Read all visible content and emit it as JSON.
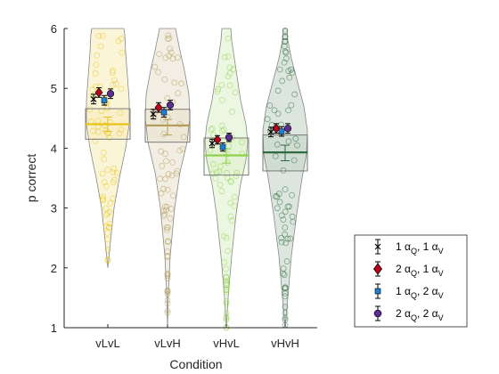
{
  "chart_data": {
    "type": "violin",
    "title": "",
    "xlabel": "Condition",
    "ylabel": "p correct",
    "ylim": [
      1,
      6
    ],
    "yticks": [
      "1",
      "2",
      "3",
      "4",
      "5",
      "6"
    ],
    "categories": [
      "vLvL",
      "vLvH",
      "vHvL",
      "vHvH"
    ],
    "colors": {
      "vLvL": "#e8c31a",
      "vLvH": "#b39d5a",
      "vHvL": "#8fd14f",
      "vHvH": "#2e6b3e"
    },
    "violins": [
      {
        "category": "vLvL",
        "min": 2.0,
        "max": 6.0,
        "q1": 4.15,
        "q3": 4.66,
        "median": 4.4,
        "mean": 4.4,
        "mean_err": 0.12
      },
      {
        "category": "vLvH",
        "min": 1.0,
        "max": 6.0,
        "q1": 4.1,
        "q3": 4.65,
        "median": 4.38,
        "mean": 4.35,
        "mean_err": 0.13
      },
      {
        "category": "vHvL",
        "min": 1.0,
        "max": 6.0,
        "q1": 3.55,
        "q3": 4.17,
        "median": 3.88,
        "mean": 3.87,
        "mean_err": 0.12
      },
      {
        "category": "vHvH",
        "min": 1.0,
        "max": 6.0,
        "q1": 3.62,
        "q3": 4.22,
        "median": 3.93,
        "mean": 3.92,
        "mean_err": 0.13
      }
    ],
    "series": [
      {
        "name": "1 αQ, 1 αV",
        "marker": "x",
        "color": "#000000",
        "values": [
          4.82,
          4.57,
          4.08,
          4.27
        ],
        "err": [
          0.08,
          0.08,
          0.07,
          0.08
        ]
      },
      {
        "name": "2 αQ, 1 αV",
        "marker": "diamond",
        "color": "#c0001c",
        "values": [
          4.93,
          4.68,
          4.14,
          4.33
        ],
        "err": [
          0.08,
          0.08,
          0.07,
          0.08
        ]
      },
      {
        "name": "1 αQ, 2 αV",
        "marker": "square",
        "color": "#1f7fd1",
        "values": [
          4.8,
          4.6,
          4.02,
          4.28
        ],
        "err": [
          0.08,
          0.08,
          0.07,
          0.08
        ]
      },
      {
        "name": "2 αQ, 2 αV",
        "marker": "circle",
        "color": "#5b2d8e",
        "values": [
          4.91,
          4.72,
          4.18,
          4.33
        ],
        "err": [
          0.08,
          0.08,
          0.07,
          0.08
        ]
      }
    ],
    "legend": {
      "position": "bottom-right-outside",
      "entries": [
        {
          "main": "1 α",
          "sub1": "Q",
          "mid": ", 1 α",
          "sub2": "V"
        },
        {
          "main": "2 α",
          "sub1": "Q",
          "mid": ", 1 α",
          "sub2": "V"
        },
        {
          "main": "1 α",
          "sub1": "Q",
          "mid": ", 2 α",
          "sub2": "V"
        },
        {
          "main": "2 α",
          "sub1": "Q",
          "mid": ", 2 α",
          "sub2": "V"
        }
      ]
    }
  }
}
